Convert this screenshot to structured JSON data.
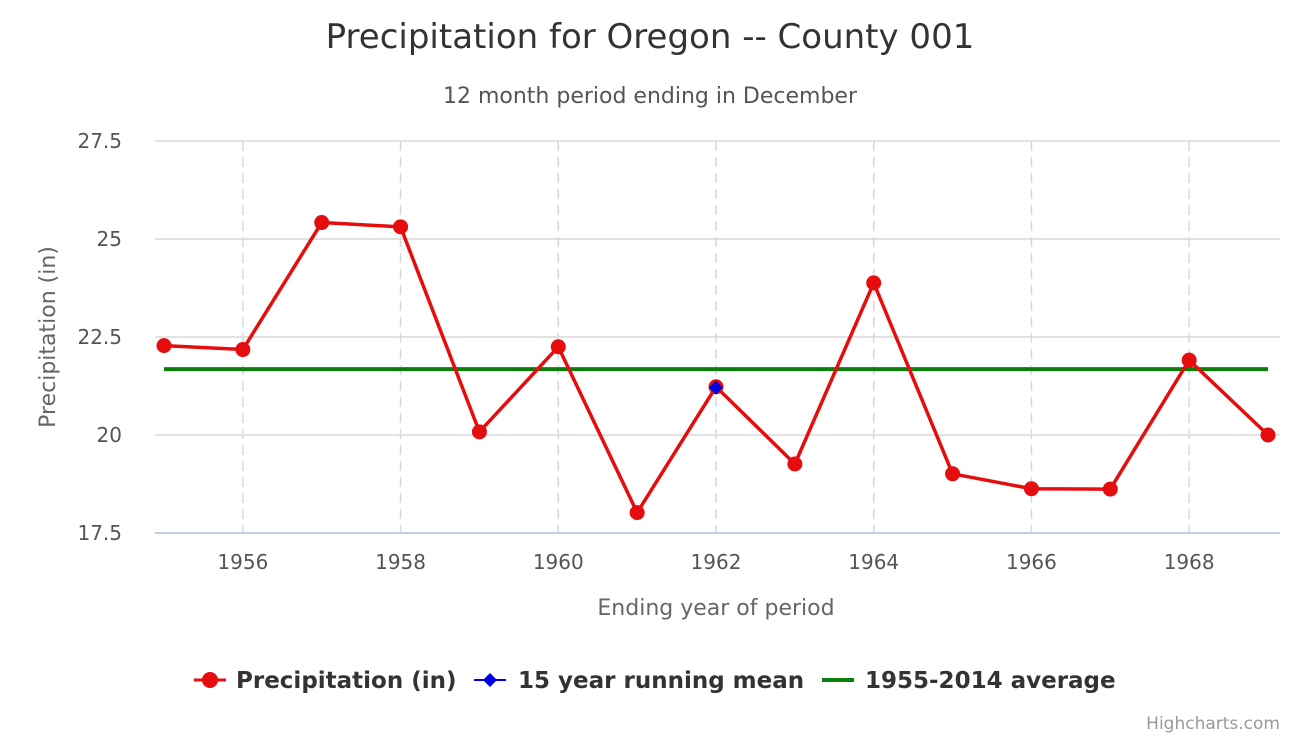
{
  "chart_data": {
    "type": "line",
    "title": "Precipitation for Oregon -- County 001",
    "subtitle": "12 month period ending in December",
    "xlabel": "Ending year of period",
    "ylabel": "Precipitation (in)",
    "x": [
      1955,
      1956,
      1957,
      1958,
      1959,
      1960,
      1961,
      1962,
      1963,
      1964,
      1965,
      1966,
      1967,
      1968,
      1969
    ],
    "xlim": [
      1955,
      1969
    ],
    "ylim": [
      17.5,
      27.5
    ],
    "xticks": [
      1956,
      1958,
      1960,
      1962,
      1964,
      1966,
      1968
    ],
    "xtick_labels": [
      "1956",
      "1958",
      "1960",
      "1962",
      "1964",
      "1966",
      "1968"
    ],
    "yticks": [
      17.5,
      20,
      22.5,
      25,
      27.5
    ],
    "ytick_labels": [
      "17.5",
      "20",
      "22.5",
      "25",
      "27.5"
    ],
    "grid": {
      "x": "dashed",
      "y": "solid"
    },
    "legend_position": "bottom",
    "series": [
      {
        "name": "Precipitation (in)",
        "color": "#e50d0d",
        "marker": "circle",
        "values": [
          22.28,
          22.18,
          25.42,
          25.31,
          20.08,
          22.25,
          18.02,
          21.23,
          19.26,
          23.88,
          19.01,
          18.63,
          18.62,
          21.91,
          20.0
        ]
      },
      {
        "name": "15 year running mean",
        "color": "#0000e0",
        "marker": "diamond",
        "points": [
          {
            "x": 1962,
            "y": 21.21
          }
        ]
      },
      {
        "name": "1955-2014 average",
        "color": "#0b7e0b",
        "marker": "none",
        "constant": 21.68
      }
    ],
    "credits": "Highcharts.com"
  }
}
